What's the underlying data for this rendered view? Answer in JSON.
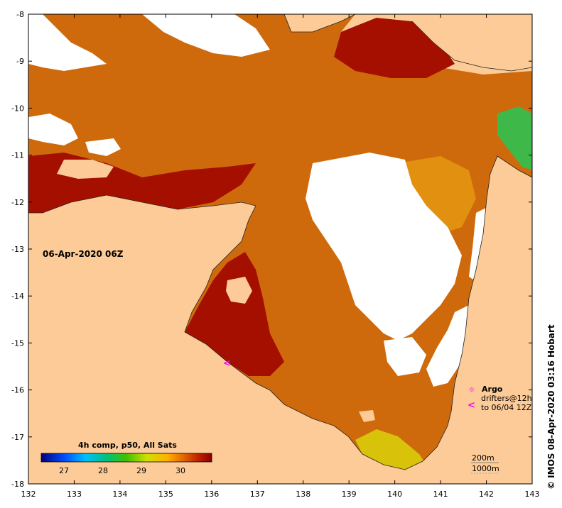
{
  "map": {
    "type": "sea-surface-temperature-map",
    "date_label": "06-Apr-2020 06Z",
    "credit": "© IMOS 08-Apr-2020 03:16 Hobart",
    "x_ticks": [
      "132",
      "133",
      "134",
      "135",
      "136",
      "137",
      "138",
      "139",
      "140",
      "141",
      "142",
      "143"
    ],
    "y_ticks": [
      "-8",
      "-9",
      "-10",
      "-11",
      "-12",
      "-13",
      "-14",
      "-15",
      "-16",
      "-17",
      "-18"
    ],
    "legend": {
      "argo_label": "Argo",
      "drifters_label": "drifters@12h",
      "drifters_sub": "to 06/04 12Z",
      "argo_symbol": "☼",
      "drifter_symbol": "<"
    },
    "depth_labels": [
      "200m",
      "1000m"
    ],
    "colorbar": {
      "title": "4h comp, p50, All Sats",
      "tick_labels": [
        "27",
        "28",
        "29",
        "30"
      ],
      "colors": [
        "#000080",
        "#0050ff",
        "#00c0ff",
        "#00c080",
        "#40c000",
        "#d0e000",
        "#ffb000",
        "#e06000",
        "#c02000",
        "#8b0000"
      ]
    },
    "colors": {
      "land": "#fccb97",
      "sst_warm": "#cf6a0c",
      "sst_hot": "#a50f00",
      "sst_mid": "#e2900f",
      "cloud": "#ffffff",
      "drifter": "#ff00ff"
    }
  }
}
